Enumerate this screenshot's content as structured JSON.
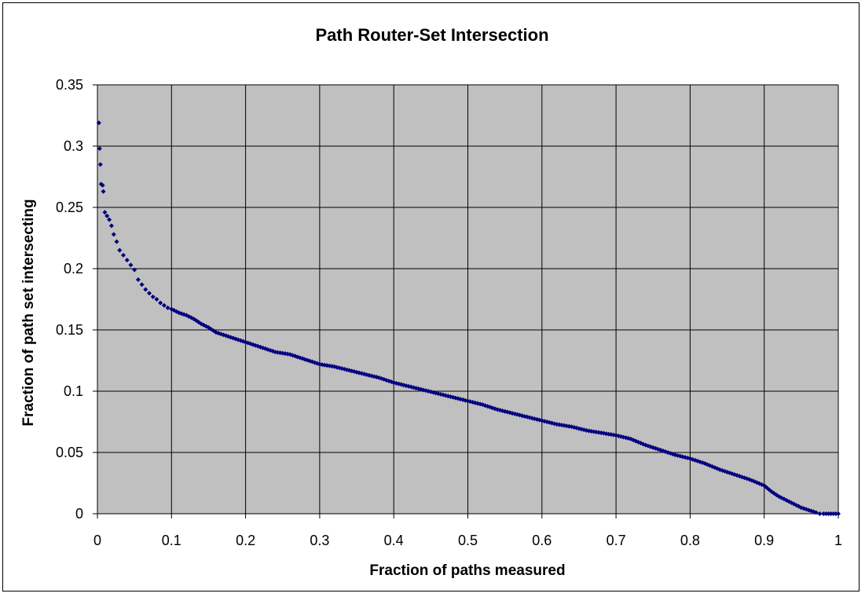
{
  "chart_data": {
    "type": "scatter",
    "title": "Path Router-Set Intersection",
    "xlabel": "Fraction of paths measured",
    "ylabel": "Fraction of path set intersecting",
    "xlim": [
      0,
      1
    ],
    "ylim": [
      0,
      0.35
    ],
    "xticks": [
      "0",
      "0.1",
      "0.2",
      "0.3",
      "0.4",
      "0.5",
      "0.6",
      "0.7",
      "0.8",
      "0.9",
      "1"
    ],
    "yticks": [
      "0",
      "0.05",
      "0.1",
      "0.15",
      "0.2",
      "0.25",
      "0.3",
      "0.35"
    ],
    "grid": true,
    "legend": "none",
    "colors": {
      "plot_bg": "#c0c0c0",
      "marker": "#000080",
      "grid": "#000000"
    },
    "series": [
      {
        "marker": "diamond",
        "x": [
          0.002,
          0.003,
          0.004,
          0.005,
          0.007,
          0.008,
          0.01,
          0.013,
          0.016,
          0.019,
          0.022,
          0.026,
          0.03,
          0.035,
          0.04,
          0.045,
          0.05,
          0.055,
          0.06,
          0.065,
          0.07,
          0.075,
          0.08,
          0.085,
          0.09,
          0.095,
          0.1,
          0.11,
          0.12,
          0.13,
          0.14,
          0.15,
          0.16,
          0.17,
          0.18,
          0.19,
          0.2,
          0.21,
          0.22,
          0.23,
          0.24,
          0.25,
          0.26,
          0.27,
          0.28,
          0.29,
          0.3,
          0.32,
          0.34,
          0.36,
          0.38,
          0.4,
          0.42,
          0.44,
          0.46,
          0.48,
          0.5,
          0.52,
          0.54,
          0.56,
          0.58,
          0.6,
          0.62,
          0.64,
          0.66,
          0.68,
          0.7,
          0.72,
          0.74,
          0.76,
          0.78,
          0.8,
          0.82,
          0.84,
          0.86,
          0.88,
          0.9,
          0.91,
          0.92,
          0.93,
          0.94,
          0.95,
          0.96,
          0.97,
          0.975,
          0.98,
          0.99,
          1.0
        ],
        "y": [
          0.319,
          0.298,
          0.285,
          0.269,
          0.268,
          0.263,
          0.246,
          0.243,
          0.24,
          0.235,
          0.228,
          0.222,
          0.215,
          0.211,
          0.207,
          0.203,
          0.199,
          0.191,
          0.187,
          0.183,
          0.18,
          0.177,
          0.175,
          0.172,
          0.17,
          0.168,
          0.167,
          0.164,
          0.162,
          0.159,
          0.155,
          0.152,
          0.148,
          0.146,
          0.144,
          0.142,
          0.14,
          0.138,
          0.136,
          0.134,
          0.132,
          0.131,
          0.13,
          0.128,
          0.126,
          0.124,
          0.122,
          0.12,
          0.117,
          0.114,
          0.111,
          0.107,
          0.104,
          0.101,
          0.098,
          0.095,
          0.092,
          0.089,
          0.085,
          0.082,
          0.079,
          0.076,
          0.073,
          0.071,
          0.068,
          0.066,
          0.064,
          0.061,
          0.056,
          0.052,
          0.048,
          0.045,
          0.041,
          0.036,
          0.032,
          0.028,
          0.023,
          0.018,
          0.014,
          0.011,
          0.008,
          0.005,
          0.003,
          0.001,
          0.0,
          0.0,
          0.0,
          0.0
        ]
      }
    ]
  }
}
